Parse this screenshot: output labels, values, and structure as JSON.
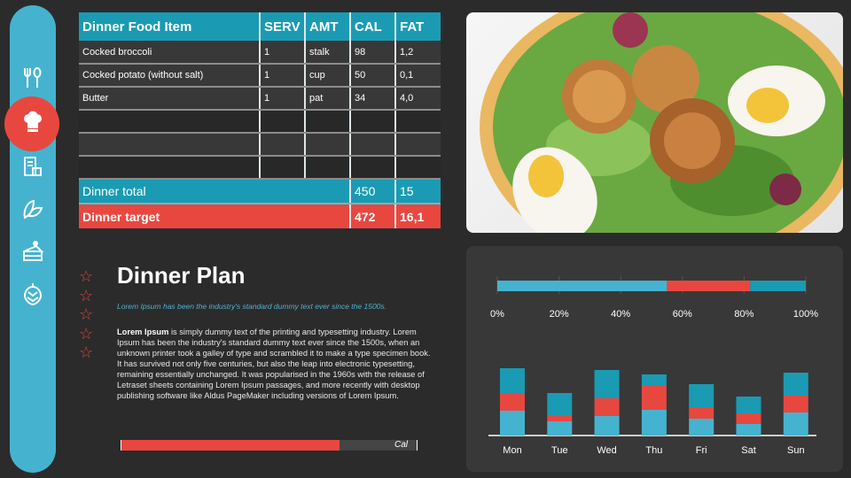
{
  "sidebar": {
    "items": [
      {
        "icon": "fork-spoon-icon"
      },
      {
        "icon": "chef-hat-icon",
        "active": true
      },
      {
        "icon": "menu-document-icon"
      },
      {
        "icon": "leaf-icon"
      },
      {
        "icon": "cake-icon"
      },
      {
        "icon": "hops-icon"
      }
    ]
  },
  "table": {
    "headers": [
      "Dinner Food Item",
      "SERV",
      "AMT",
      "CAL",
      "FAT"
    ],
    "rows": [
      [
        "Cocked broccoli",
        "1",
        "stalk",
        "98",
        "1,2"
      ],
      [
        "Cocked potato (without salt)",
        "1",
        "cup",
        "50",
        "0,1"
      ],
      [
        "Butter",
        "1",
        "pat",
        "34",
        "4,0"
      ],
      [
        "",
        "",
        "",
        "",
        ""
      ],
      [
        "",
        "",
        "",
        "",
        ""
      ],
      [
        "",
        "",
        "",
        "",
        ""
      ]
    ],
    "total": {
      "label": "Dinner total",
      "cal": "450",
      "fat": "15"
    },
    "target": {
      "label": "Dinner target",
      "cal": "472",
      "fat": "16,1"
    }
  },
  "plan": {
    "title": "Dinner Plan",
    "subtitle": "Lorem Ipsum has been the industry's standard dummy text ever since the 1500s.",
    "body_bold": "Lorem Ipsum",
    "body": " is  simply dummy text of the printing and typesetting industry. Lorem Ipsum has been the industry's standard dummy text ever since the 1500s, when an unknown printer took a galley of type and scrambled it to make a type specimen  book. It has survived  not only five centuries, but also the leap  into electronic typesetting, remaining essentially  unchanged. It was popularised in the 1960s with the release  of Letraset sheets containing Lorem Ipsum passages, and more recently with desktop publishing software like Aldus PageMaker including versions of Lorem Ipsum.",
    "stars": 5,
    "cal_label": "Cal",
    "cal_progress": 0.82
  },
  "colors": {
    "light": "#45b3cf",
    "red": "#e8473f",
    "dark": "#1a9bb3"
  },
  "chart_data": [
    {
      "type": "bar",
      "orientation": "horizontal",
      "stacked": true,
      "segments": [
        55,
        27,
        18
      ],
      "xlim": [
        0,
        100
      ],
      "ticks": [
        "0%",
        "20%",
        "40%",
        "60%",
        "80%",
        "100%"
      ],
      "grid": true
    },
    {
      "type": "bar",
      "stacked": true,
      "categories": [
        "Mon",
        "Tue",
        "Wed",
        "Thu",
        "Fri",
        "Sat",
        "Sun"
      ],
      "series": [
        {
          "values": [
            28,
            16,
            22,
            29,
            19,
            13,
            26
          ]
        },
        {
          "values": [
            19,
            6,
            20,
            27,
            13,
            12,
            19
          ]
        },
        {
          "values": [
            29,
            26,
            32,
            13,
            26,
            19,
            26
          ]
        }
      ]
    }
  ]
}
